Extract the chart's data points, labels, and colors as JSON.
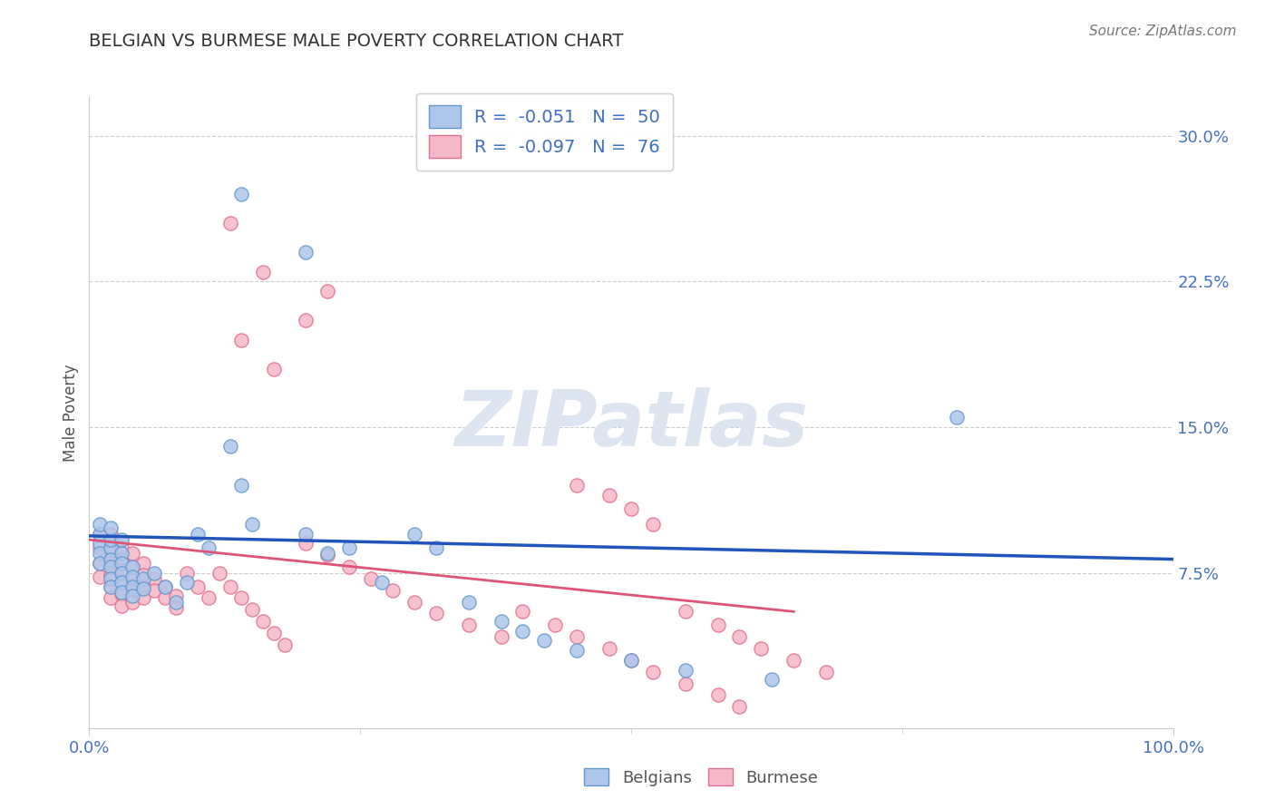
{
  "title": "BELGIAN VS BURMESE MALE POVERTY CORRELATION CHART",
  "source_text": "Source: ZipAtlas.com",
  "ylabel": "Male Poverty",
  "xlim": [
    0.0,
    1.0
  ],
  "ylim": [
    -0.005,
    0.32
  ],
  "yticks": [
    0.075,
    0.15,
    0.225,
    0.3
  ],
  "ytick_labels": [
    "7.5%",
    "15.0%",
    "22.5%",
    "30.0%"
  ],
  "belgian_R": -0.051,
  "belgian_N": 50,
  "burmese_R": -0.097,
  "burmese_N": 76,
  "belgian_color": "#adc6ea",
  "burmese_color": "#f5b8c8",
  "belgian_edge_color": "#6699cc",
  "burmese_edge_color": "#e07090",
  "belgian_line_color": "#2255bb",
  "burmese_line_color": "#dd5577",
  "title_color": "#333333",
  "axis_label_color": "#555555",
  "tick_color": "#4472c4",
  "watermark_color": "#dde5f0",
  "legend_text_color": "#4472c4",
  "grid_color": "#cccccc",
  "belgians_x": [
    0.01,
    0.01,
    0.01,
    0.01,
    0.01,
    0.02,
    0.02,
    0.02,
    0.02,
    0.02,
    0.02,
    0.02,
    0.03,
    0.03,
    0.03,
    0.03,
    0.03,
    0.03,
    0.04,
    0.04,
    0.04,
    0.04,
    0.05,
    0.05,
    0.06,
    0.07,
    0.08,
    0.09,
    0.1,
    0.11,
    0.13,
    0.14,
    0.15,
    0.2,
    0.22,
    0.24,
    0.27,
    0.3,
    0.32,
    0.35,
    0.38,
    0.4,
    0.42,
    0.45,
    0.5,
    0.55,
    0.63,
    0.8,
    0.14,
    0.2
  ],
  "belgians_y": [
    0.09,
    0.085,
    0.08,
    0.095,
    0.1,
    0.088,
    0.082,
    0.078,
    0.092,
    0.098,
    0.072,
    0.068,
    0.085,
    0.08,
    0.075,
    0.07,
    0.065,
    0.092,
    0.078,
    0.073,
    0.068,
    0.063,
    0.072,
    0.067,
    0.075,
    0.068,
    0.06,
    0.07,
    0.095,
    0.088,
    0.14,
    0.12,
    0.1,
    0.095,
    0.085,
    0.088,
    0.07,
    0.095,
    0.088,
    0.06,
    0.05,
    0.045,
    0.04,
    0.035,
    0.03,
    0.025,
    0.02,
    0.155,
    0.27,
    0.24
  ],
  "burmese_x": [
    0.01,
    0.01,
    0.01,
    0.01,
    0.02,
    0.02,
    0.02,
    0.02,
    0.02,
    0.02,
    0.02,
    0.03,
    0.03,
    0.03,
    0.03,
    0.03,
    0.03,
    0.04,
    0.04,
    0.04,
    0.04,
    0.04,
    0.05,
    0.05,
    0.05,
    0.05,
    0.06,
    0.06,
    0.07,
    0.07,
    0.08,
    0.08,
    0.09,
    0.1,
    0.11,
    0.12,
    0.13,
    0.14,
    0.15,
    0.16,
    0.17,
    0.18,
    0.2,
    0.22,
    0.24,
    0.26,
    0.28,
    0.3,
    0.32,
    0.35,
    0.38,
    0.4,
    0.43,
    0.45,
    0.48,
    0.5,
    0.52,
    0.55,
    0.58,
    0.6,
    0.14,
    0.17,
    0.2,
    0.22,
    0.13,
    0.16,
    0.45,
    0.48,
    0.5,
    0.52,
    0.55,
    0.58,
    0.6,
    0.62,
    0.65,
    0.68
  ],
  "burmese_y": [
    0.095,
    0.088,
    0.08,
    0.073,
    0.092,
    0.086,
    0.08,
    0.074,
    0.068,
    0.062,
    0.095,
    0.088,
    0.082,
    0.076,
    0.07,
    0.064,
    0.058,
    0.085,
    0.078,
    0.072,
    0.066,
    0.06,
    0.08,
    0.074,
    0.068,
    0.062,
    0.072,
    0.066,
    0.068,
    0.062,
    0.063,
    0.057,
    0.075,
    0.068,
    0.062,
    0.075,
    0.068,
    0.062,
    0.056,
    0.05,
    0.044,
    0.038,
    0.09,
    0.084,
    0.078,
    0.072,
    0.066,
    0.06,
    0.054,
    0.048,
    0.042,
    0.055,
    0.048,
    0.042,
    0.036,
    0.03,
    0.024,
    0.018,
    0.012,
    0.006,
    0.195,
    0.18,
    0.205,
    0.22,
    0.255,
    0.23,
    0.12,
    0.115,
    0.108,
    0.1,
    0.055,
    0.048,
    0.042,
    0.036,
    0.03,
    0.024
  ]
}
